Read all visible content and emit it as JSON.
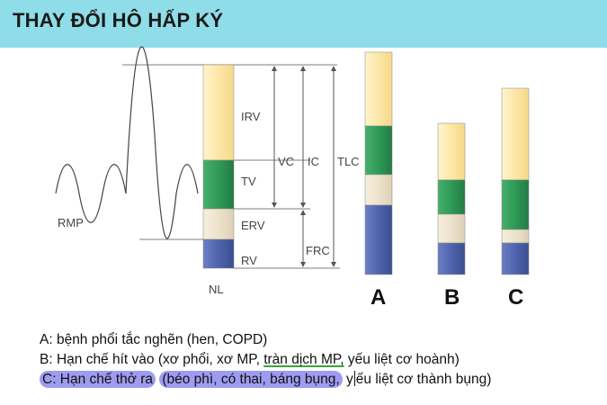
{
  "title": "THAY ĐỔI HÔ HẤP KÝ",
  "diagram": {
    "labels": {
      "irv": "IRV",
      "tv": "TV",
      "erv": "ERV",
      "rv": "RV",
      "nl": "NL",
      "rmp": "RMP",
      "vc": "VC",
      "ic": "IC",
      "tlc": "TLC",
      "frc": "FRC"
    },
    "columns": [
      "A",
      "B",
      "C"
    ]
  },
  "notes": {
    "a": "A: bệnh phổi tắc nghẽn (hen, COPD)",
    "b_pre": "B: Hạn chế hít vào (xơ phổi, xơ MP, ",
    "b_ul": "tràn dịch MP,",
    "b_post": " yếu liệt cơ hoành)",
    "c_hl1": "C: Hạn chế thở ra",
    "c_sp": " ",
    "c_hl2": "(béo phì, có thai, báng bụng,",
    "c_post1": " y",
    "c_post2": "ếu liệt cơ thành bụng)"
  },
  "colors": {
    "irv": "#fde7a6",
    "tv": "#2f9a57",
    "erv": "#ede2cc",
    "rv": "#4f64ad",
    "header": "#8fdde8",
    "highlight": "#9e9cf0"
  }
}
